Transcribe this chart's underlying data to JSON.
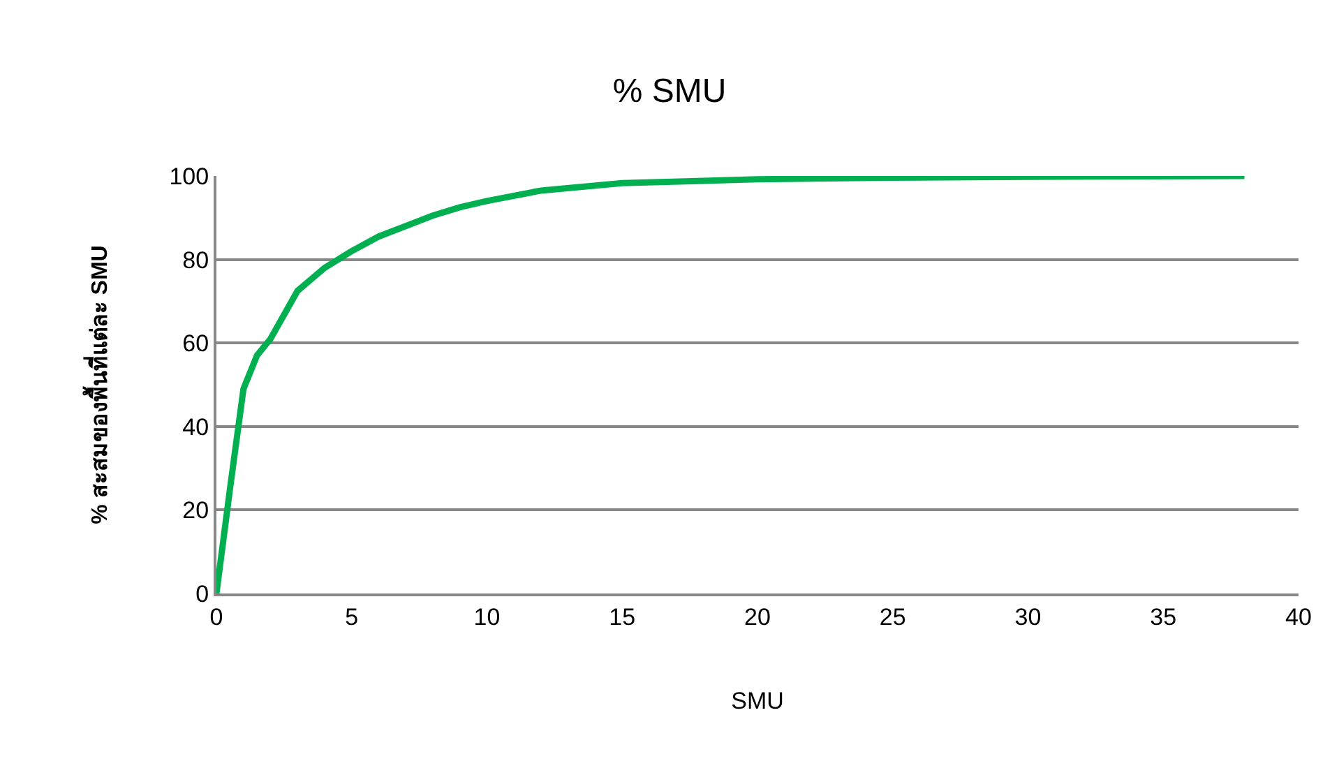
{
  "chart_data": {
    "type": "line",
    "title": "% SMU",
    "xlabel": "SMU",
    "ylabel": "% สะสมของพื้นที่แต่ละ SMU",
    "x": [
      0,
      0.5,
      1,
      1.5,
      2,
      3,
      4,
      5,
      6,
      7,
      8,
      9,
      10,
      12,
      15,
      20,
      25,
      30,
      38
    ],
    "series": [
      {
        "color": "#00b050",
        "values": [
          0,
          25,
          49,
          57,
          61,
          72.5,
          78,
          82,
          85.5,
          88,
          90.5,
          92.5,
          94,
          96.5,
          98.3,
          99.2,
          99.6,
          99.8,
          100
        ]
      }
    ],
    "xlim": [
      0,
      40
    ],
    "xticks": [
      0,
      5,
      10,
      15,
      20,
      25,
      30,
      35,
      40
    ],
    "ylim": [
      0,
      100
    ],
    "yticks": [
      0,
      20,
      40,
      60,
      80,
      100
    ],
    "grid": "y",
    "marker": "none",
    "line_style": "solid"
  }
}
